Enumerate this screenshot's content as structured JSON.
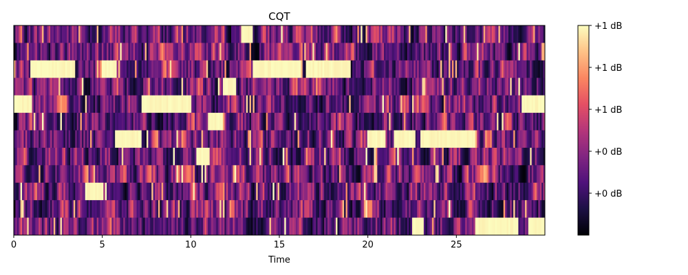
{
  "chart_data": {
    "type": "heatmap",
    "title": "CQT",
    "xlabel": "Time",
    "ylabel": "",
    "x_ticks": [
      0,
      5,
      10,
      15,
      20,
      25
    ],
    "x_range": [
      0,
      30
    ],
    "n_bins": 12,
    "colormap": "magma",
    "colormap_stops": [
      "#000004",
      "#1c1044",
      "#4f127b",
      "#812581",
      "#b5367a",
      "#e55064",
      "#fb8761",
      "#fec287",
      "#fcfdbf"
    ],
    "colorbar": {
      "labels": [
        "+1 dB",
        "+1 dB",
        "+1 dB",
        "+0 dB",
        "+0 dB"
      ],
      "label_levels": [
        1.0,
        0.8,
        0.6,
        0.4,
        0.2
      ]
    },
    "saturated_segments": [
      {
        "bin": 2,
        "start": 0.9,
        "end": 3.5
      },
      {
        "bin": 2,
        "start": 5.0,
        "end": 5.8
      },
      {
        "bin": 2,
        "start": 13.5,
        "end": 16.2
      },
      {
        "bin": 2,
        "start": 16.5,
        "end": 19.0
      },
      {
        "bin": 4,
        "start": 0.0,
        "end": 0.9
      },
      {
        "bin": 4,
        "start": 7.2,
        "end": 10.0
      },
      {
        "bin": 4,
        "start": 28.7,
        "end": 30.0
      },
      {
        "bin": 5,
        "start": 11.0,
        "end": 11.8
      },
      {
        "bin": 6,
        "start": 5.7,
        "end": 7.2
      },
      {
        "bin": 6,
        "start": 20.0,
        "end": 21.0
      },
      {
        "bin": 6,
        "start": 21.5,
        "end": 22.7
      },
      {
        "bin": 6,
        "start": 23.0,
        "end": 26.1
      },
      {
        "bin": 7,
        "start": 10.3,
        "end": 11.1
      },
      {
        "bin": 9,
        "start": 4.0,
        "end": 5.1
      },
      {
        "bin": 11,
        "start": 26.1,
        "end": 28.5
      },
      {
        "bin": 11,
        "start": 22.5,
        "end": 23.2
      },
      {
        "bin": 11,
        "start": 29.1,
        "end": 30.0
      },
      {
        "bin": 0,
        "start": 12.8,
        "end": 13.5
      },
      {
        "bin": 3,
        "start": 11.8,
        "end": 12.6
      }
    ]
  }
}
